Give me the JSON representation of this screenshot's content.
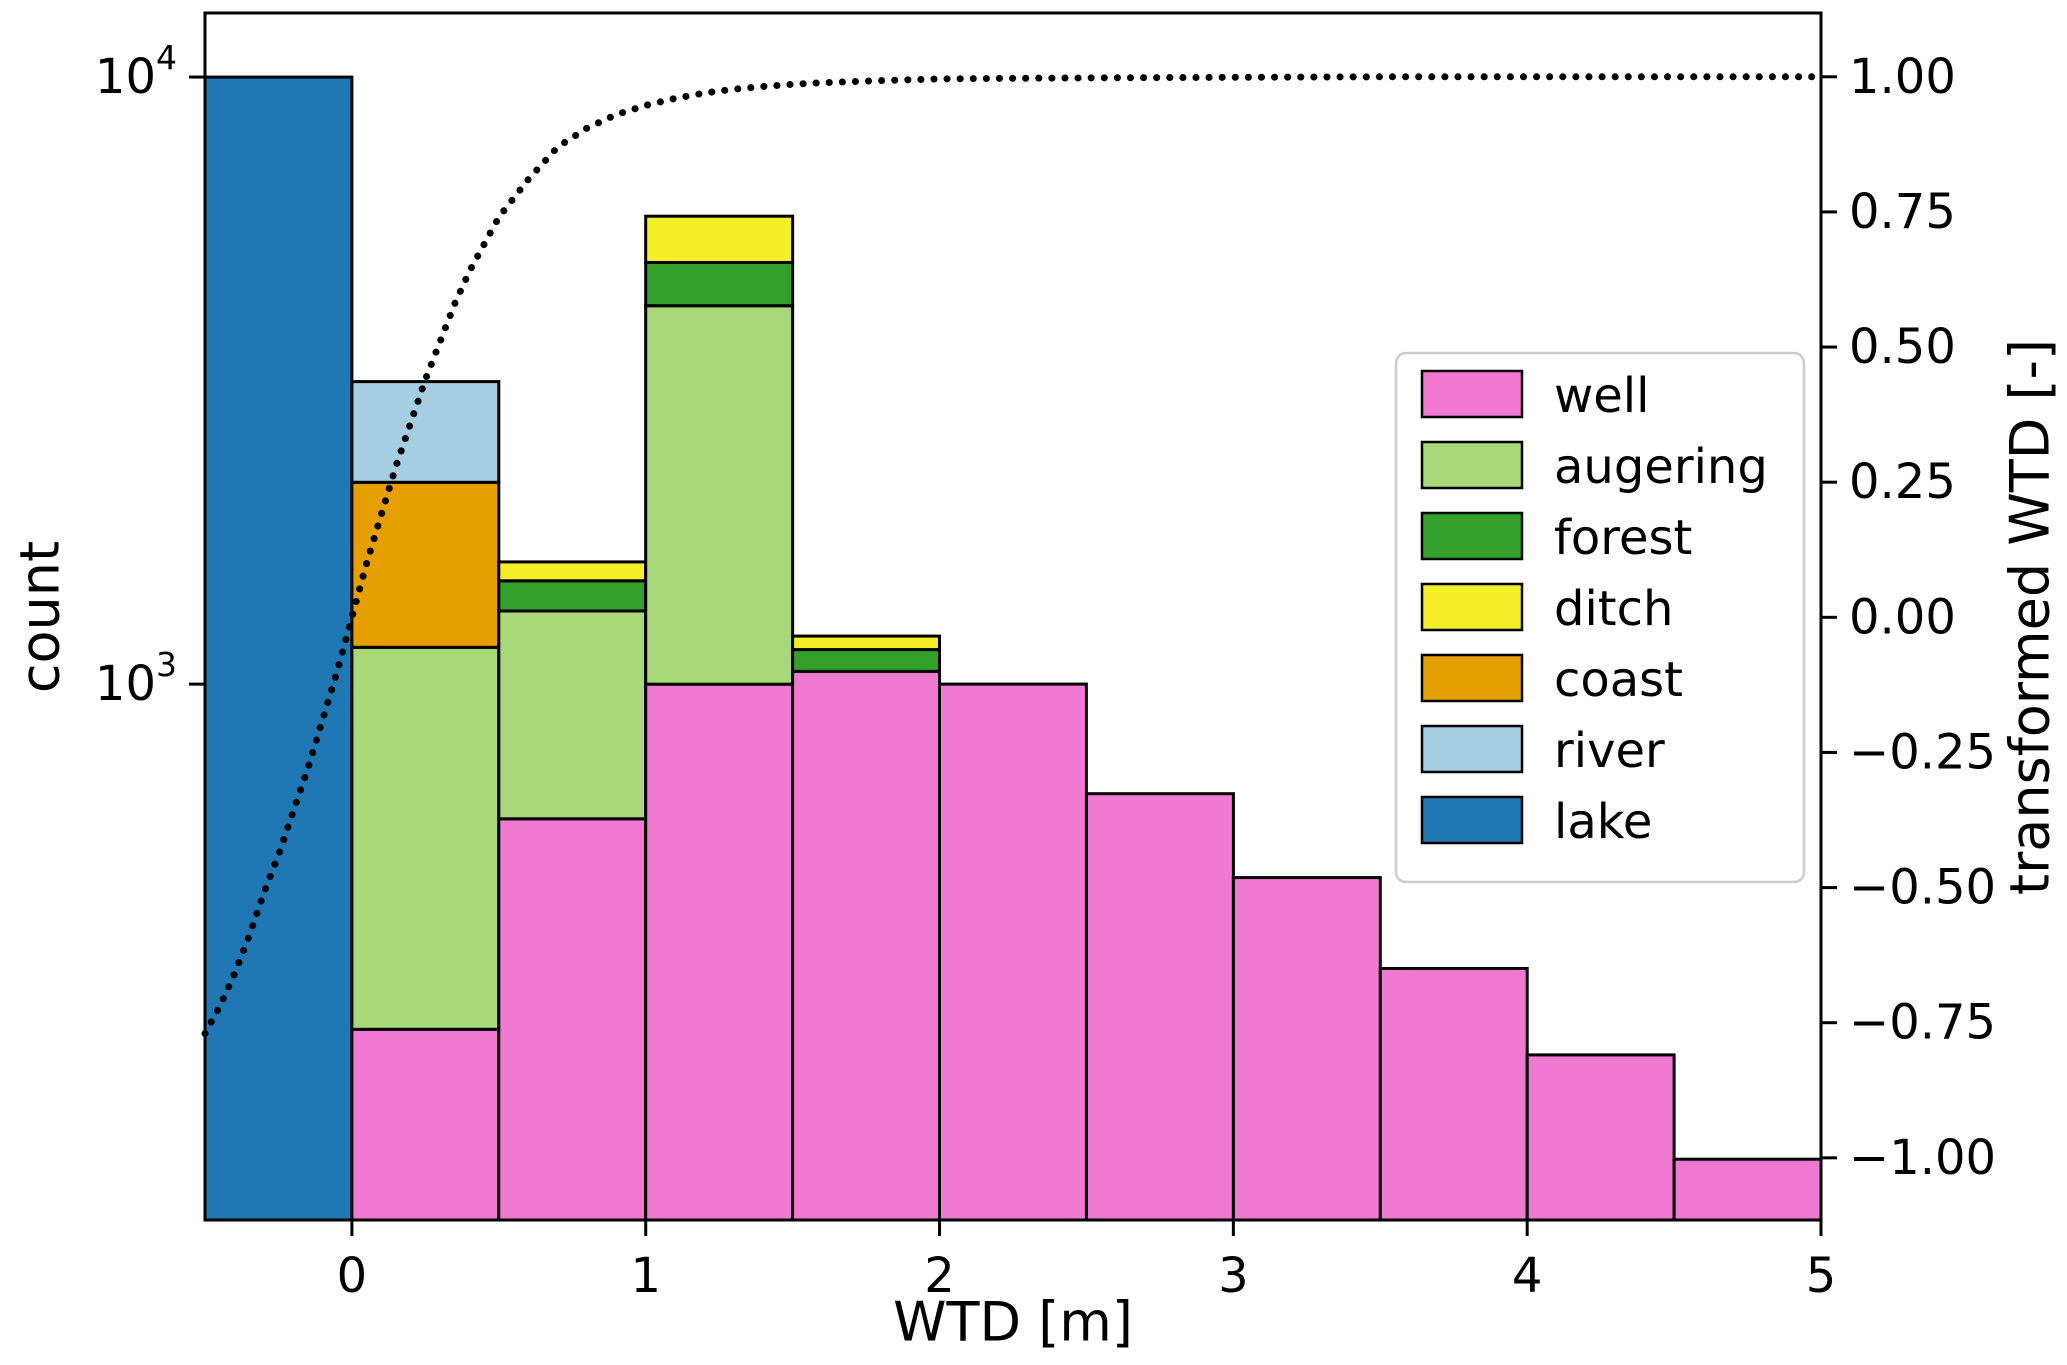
{
  "figure": {
    "xlabel": "WTD [m]",
    "ylabel_left": "count",
    "ylabel_right": "transformed WTD [-]",
    "background": "#ffffff"
  },
  "chart_data": {
    "type": "bar",
    "subtype": "stacked-histogram",
    "xlim": [
      -0.5,
      5
    ],
    "bin_width": 0.5,
    "bin_edges": [
      -0.5,
      0,
      0.5,
      1,
      1.5,
      2,
      2.5,
      3,
      3.5,
      4,
      4.5,
      5
    ],
    "x_ticks": [
      {
        "value": 0,
        "label": "0"
      },
      {
        "value": 1,
        "label": "1"
      },
      {
        "value": 2,
        "label": "2"
      },
      {
        "value": 3,
        "label": "3"
      },
      {
        "value": 4,
        "label": "4"
      },
      {
        "value": 5,
        "label": "5"
      }
    ],
    "y_left": {
      "scale": "log",
      "lim": [
        131,
        12750
      ],
      "ticks": [
        {
          "value": 1000,
          "base": "10",
          "exponent": "3"
        },
        {
          "value": 10000,
          "base": "10",
          "exponent": "4"
        }
      ]
    },
    "y_right": {
      "scale": "linear",
      "lim": [
        -1.115,
        1.118
      ],
      "ticks": [
        {
          "value": 1.0,
          "label": "1.00"
        },
        {
          "value": 0.75,
          "label": "0.75"
        },
        {
          "value": 0.5,
          "label": "0.50"
        },
        {
          "value": 0.25,
          "label": "0.25"
        },
        {
          "value": 0.0,
          "label": "0.00"
        },
        {
          "value": -0.25,
          "label": "−0.25"
        },
        {
          "value": -0.5,
          "label": "−0.50"
        },
        {
          "value": -0.75,
          "label": "−0.75"
        },
        {
          "value": -1.0,
          "label": "−1.00"
        }
      ]
    },
    "series": [
      {
        "name": "well",
        "color": "#f07ad1",
        "values": [
          0,
          270,
          600,
          1000,
          1050,
          1000,
          660,
          480,
          340,
          245,
          165
        ]
      },
      {
        "name": "augering",
        "color": "#a8d878",
        "values": [
          0,
          880,
          720,
          3200,
          0,
          0,
          0,
          0,
          0,
          0,
          0
        ]
      },
      {
        "name": "forest",
        "color": "#33a02c",
        "values": [
          0,
          0,
          160,
          750,
          90,
          0,
          0,
          0,
          0,
          0,
          0
        ]
      },
      {
        "name": "ditch",
        "color": "#f5ef28",
        "values": [
          0,
          0,
          110,
          950,
          60,
          0,
          0,
          0,
          0,
          0,
          0
        ]
      },
      {
        "name": "coast",
        "color": "#e69f00",
        "values": [
          0,
          1000,
          0,
          0,
          0,
          0,
          0,
          0,
          0,
          0,
          0
        ]
      },
      {
        "name": "river",
        "color": "#a6cee3",
        "values": [
          0,
          1000,
          0,
          0,
          0,
          0,
          0,
          0,
          0,
          0,
          0
        ]
      },
      {
        "name": "lake",
        "color": "#1f78b4",
        "values": [
          10000,
          0,
          0,
          0,
          0,
          0,
          0,
          0,
          0,
          0,
          0
        ]
      }
    ],
    "line": {
      "name": "transformed-wtd-curve",
      "style": "dotted",
      "color": "#000000",
      "axis": "right",
      "points": [
        [
          -0.5,
          -0.77
        ],
        [
          -0.45,
          -0.72
        ],
        [
          -0.4,
          -0.66
        ],
        [
          -0.35,
          -0.59
        ],
        [
          -0.3,
          -0.51
        ],
        [
          -0.25,
          -0.44
        ],
        [
          -0.2,
          -0.36
        ],
        [
          -0.15,
          -0.28
        ],
        [
          -0.1,
          -0.19
        ],
        [
          -0.05,
          -0.1
        ],
        [
          0,
          0.0
        ],
        [
          0.05,
          0.1
        ],
        [
          0.1,
          0.19
        ],
        [
          0.15,
          0.28
        ],
        [
          0.2,
          0.36
        ],
        [
          0.25,
          0.44
        ],
        [
          0.3,
          0.51
        ],
        [
          0.35,
          0.58
        ],
        [
          0.4,
          0.64
        ],
        [
          0.45,
          0.69
        ],
        [
          0.5,
          0.74
        ],
        [
          0.6,
          0.81
        ],
        [
          0.7,
          0.87
        ],
        [
          0.8,
          0.905
        ],
        [
          0.9,
          0.93
        ],
        [
          1.0,
          0.947
        ],
        [
          1.1,
          0.96
        ],
        [
          1.2,
          0.97
        ],
        [
          1.3,
          0.977
        ],
        [
          1.4,
          0.982
        ],
        [
          1.5,
          0.986
        ],
        [
          1.6,
          0.989
        ],
        [
          1.8,
          0.993
        ],
        [
          2.0,
          0.996
        ],
        [
          2.2,
          0.997
        ],
        [
          2.5,
          0.998
        ],
        [
          3.0,
          0.999
        ],
        [
          3.5,
          1.0
        ],
        [
          4.0,
          1.0
        ],
        [
          4.5,
          1.0
        ],
        [
          5.0,
          1.0
        ]
      ]
    },
    "legend": {
      "position": "center-right",
      "entries": [
        "well",
        "augering",
        "forest",
        "ditch",
        "coast",
        "river",
        "lake"
      ]
    }
  }
}
